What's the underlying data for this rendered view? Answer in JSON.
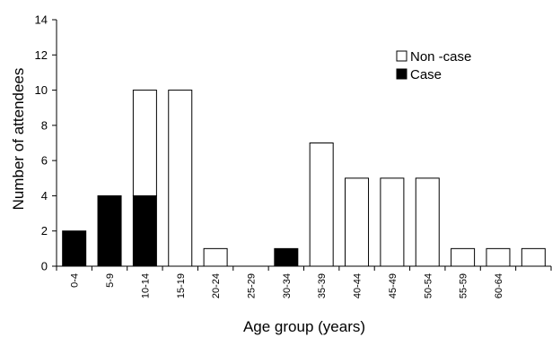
{
  "chart_data": {
    "type": "bar",
    "stacked": true,
    "categories": [
      "0-4",
      "5-9",
      "10-14",
      "15-19",
      "20-24",
      "25-29",
      "30-34",
      "35-39",
      "40-44",
      "45-49",
      "50-54",
      "55-59",
      "60-64",
      ""
    ],
    "series": [
      {
        "name": "Case",
        "values": [
          2,
          4,
          4,
          0,
          0,
          0,
          1,
          0,
          0,
          0,
          0,
          0,
          0,
          0
        ],
        "color": "#000000"
      },
      {
        "name": "Non -case",
        "values": [
          0,
          0,
          6,
          10,
          1,
          0,
          0,
          7,
          5,
          5,
          5,
          1,
          1,
          1
        ],
        "color": "#ffffff"
      }
    ],
    "xlabel": "Age group (years)",
    "ylabel": "Number of attendees",
    "ylim": [
      0,
      14
    ],
    "yticks": [
      0,
      2,
      4,
      6,
      8,
      10,
      12,
      14
    ],
    "grid": false,
    "legend_position": "top-right",
    "legend": [
      {
        "label": "Non -case",
        "color": "#ffffff"
      },
      {
        "label": "Case",
        "color": "#000000"
      }
    ]
  }
}
